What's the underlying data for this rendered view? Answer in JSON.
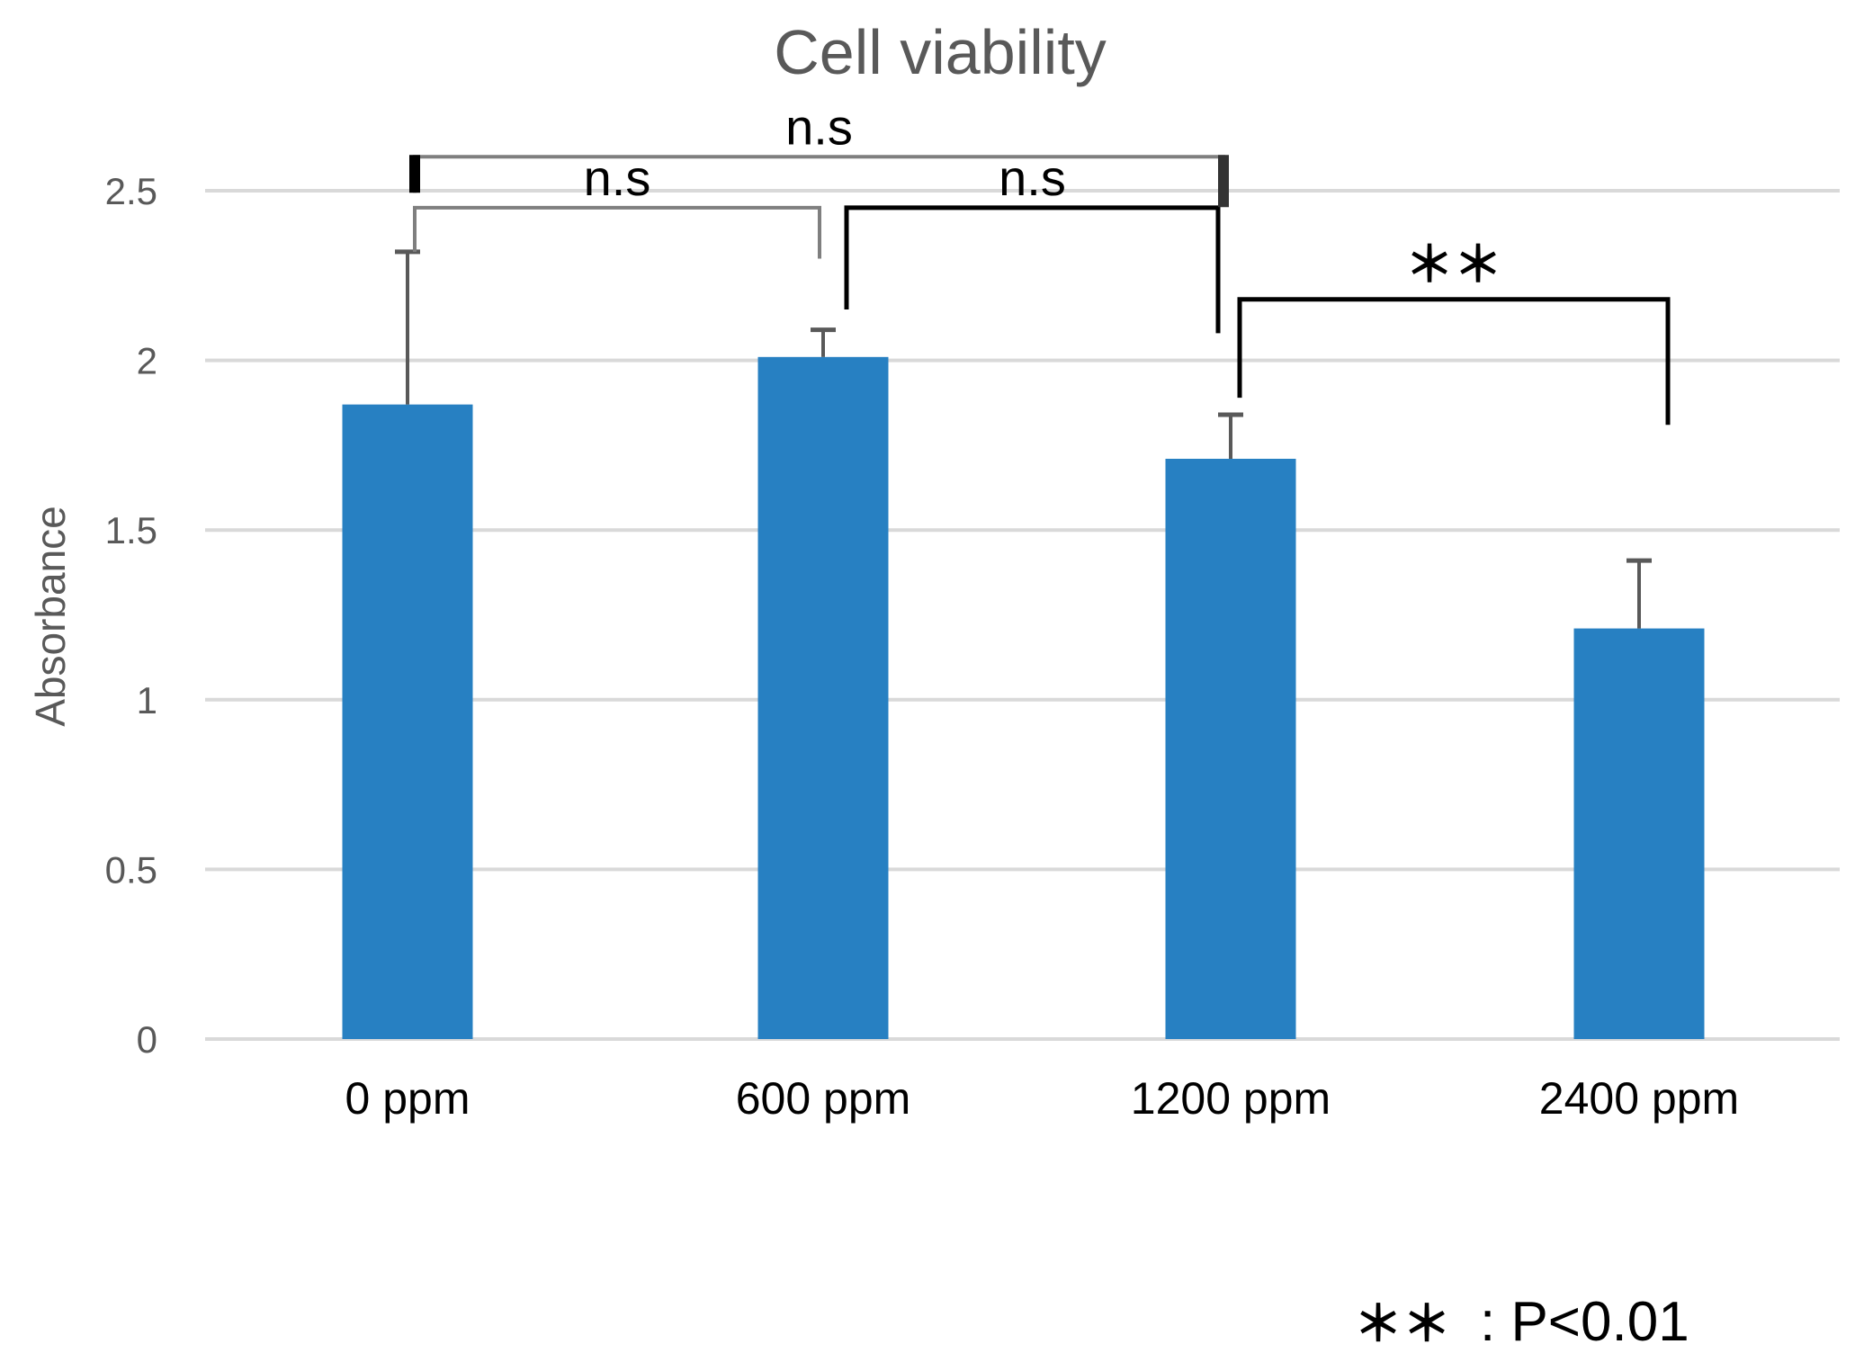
{
  "chart_data": {
    "type": "bar",
    "title": "Cell viability",
    "xlabel": "",
    "ylabel": "Absorbance",
    "categories": [
      "0 ppm",
      "600 ppm",
      "1200 ppm",
      "2400 ppm"
    ],
    "values": [
      1.87,
      2.01,
      1.71,
      1.21
    ],
    "errors": [
      0.45,
      0.08,
      0.13,
      0.2
    ],
    "ylim": [
      0,
      2.5
    ],
    "yticks": [
      0,
      0.5,
      1,
      1.5,
      2,
      2.5
    ],
    "ytick_labels": [
      "0",
      "0.5",
      "1",
      "1.5",
      "2",
      "2.5"
    ],
    "grid": true,
    "bar_color": "#2780C2",
    "significance": [
      {
        "from": 0,
        "to": 2,
        "label": "n.s",
        "level": 2.6
      },
      {
        "from": 0,
        "to": 1,
        "label": "n.s",
        "level": 2.45
      },
      {
        "from": 1,
        "to": 2,
        "label": "n.s",
        "level": 2.45
      },
      {
        "from": 2,
        "to": 3,
        "label": "＊＊",
        "level": 2.18
      }
    ],
    "footnote_stars": "＊＊",
    "footnote_text": ": P<0.01"
  }
}
